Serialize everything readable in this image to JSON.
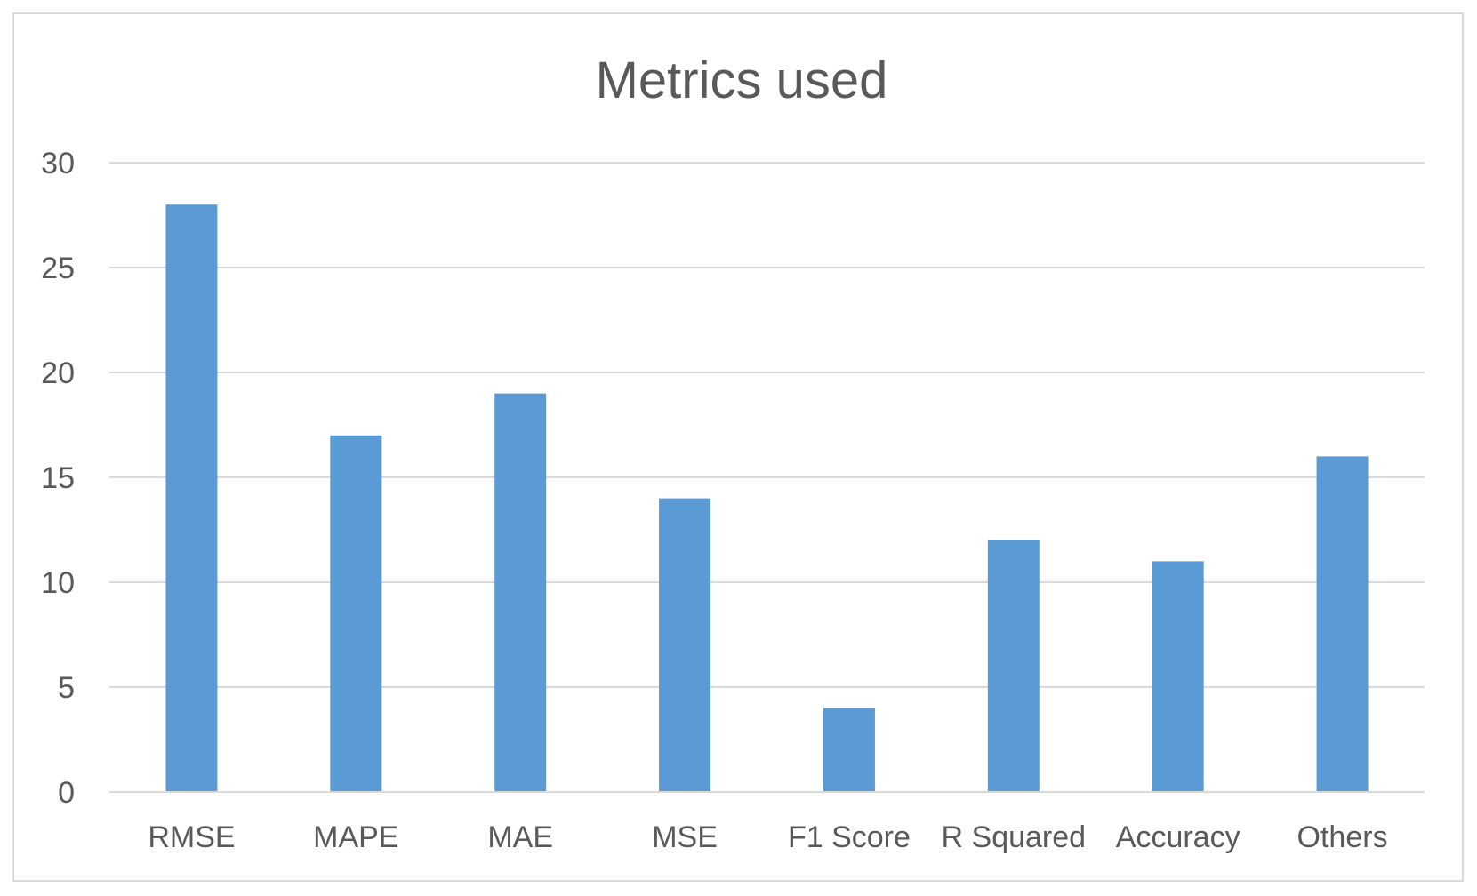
{
  "chart_data": {
    "type": "bar",
    "title": "Metrics used",
    "categories": [
      "RMSE",
      "MAPE",
      "MAE",
      "MSE",
      "F1 Score",
      "R Squared",
      "Accuracy",
      "Others"
    ],
    "values": [
      28,
      17,
      19,
      14,
      4,
      12,
      11,
      16
    ],
    "ylim": [
      0,
      30
    ],
    "yticks": [
      "0",
      "5",
      "10",
      "15",
      "20",
      "25",
      "30"
    ],
    "xlabel": "",
    "ylabel": "",
    "grid": true,
    "legend": "none",
    "colors": {
      "bar": "#5b9bd5",
      "grid": "#d9d9d9",
      "axis": "#d9d9d9",
      "text": "#595959"
    }
  }
}
